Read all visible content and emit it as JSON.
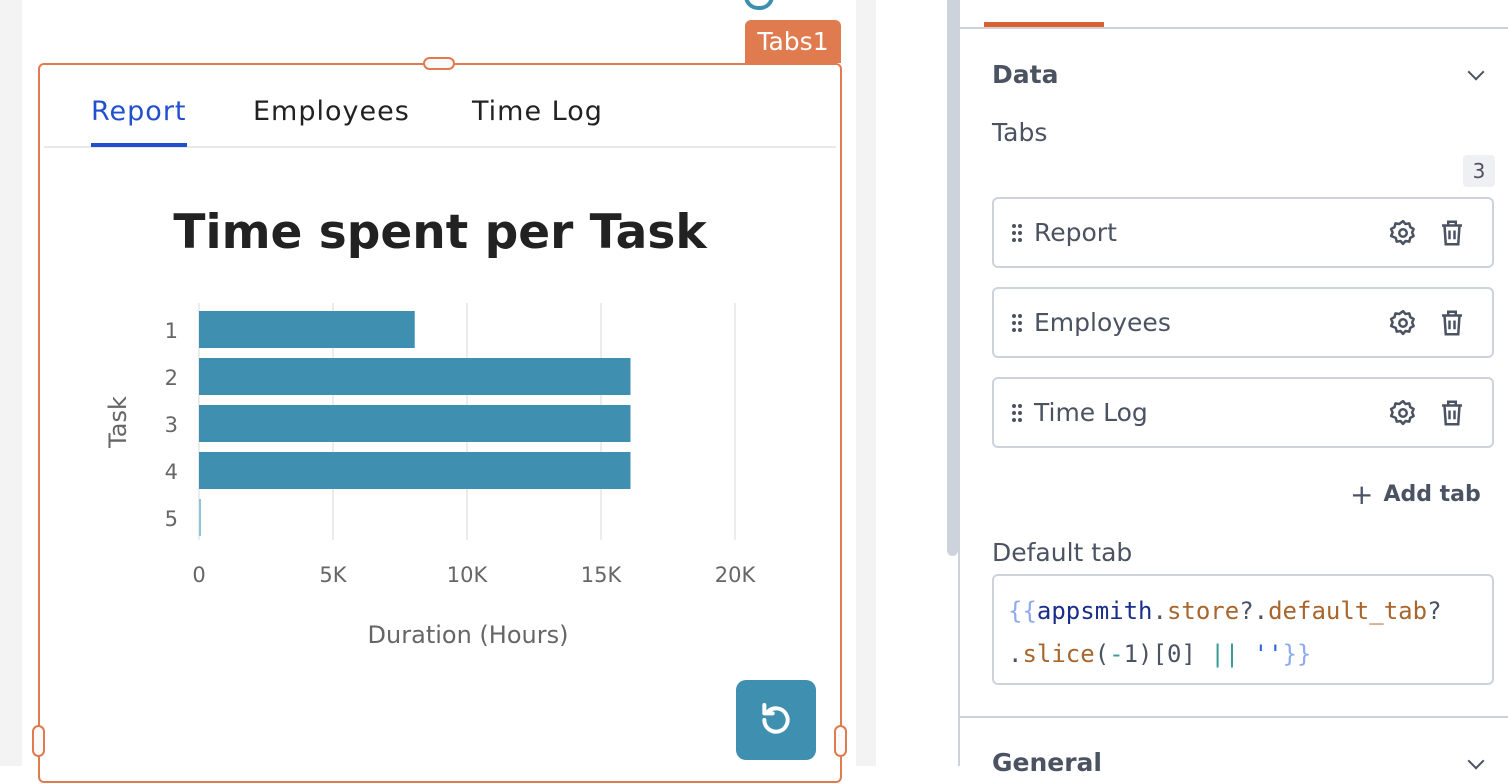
{
  "widget": {
    "label": "Tabs1",
    "tabs": [
      {
        "label": "Report",
        "active": true
      },
      {
        "label": "Employees"
      },
      {
        "label": "Time Log"
      }
    ]
  },
  "chart_data": {
    "type": "bar",
    "orientation": "horizontal",
    "title": "Time spent per Task",
    "xlabel": "Duration (Hours)",
    "ylabel": "Task",
    "categories": [
      "1",
      "2",
      "3",
      "4",
      "5"
    ],
    "values": [
      8050,
      16100,
      16100,
      16100,
      50
    ],
    "xlim": [
      0,
      23000
    ],
    "xticks": [
      0,
      5000,
      10000,
      15000,
      20000
    ],
    "xtick_labels": [
      "0",
      "5K",
      "10K",
      "15K",
      "20K"
    ],
    "grid": true,
    "color": "#3f8fb0"
  },
  "refresh_icon": "rotate-ccw-icon",
  "panel": {
    "section_data": "Data",
    "tabs_label": "Tabs",
    "tabs_count": "3",
    "tab_items": [
      {
        "label": "Report"
      },
      {
        "label": "Employees"
      },
      {
        "label": "Time Log"
      }
    ],
    "add_tab": "Add tab",
    "default_tab_label": "Default tab",
    "code_tokens": [
      {
        "t": "{{",
        "c": "#8eaaf0"
      },
      {
        "t": "appsmith",
        "c": "#1a2f8a"
      },
      {
        "t": ".",
        "c": "#4b5363"
      },
      {
        "t": "store",
        "c": "#a8662d"
      },
      {
        "t": "?.",
        "c": "#4b5363"
      },
      {
        "t": "default_tab",
        "c": "#a8662d"
      },
      {
        "t": "?",
        "c": "#4b5363"
      },
      {
        "t": ".",
        "c": "#4b5363",
        "br": true
      },
      {
        "t": "slice",
        "c": "#a8662d"
      },
      {
        "t": "(",
        "c": "#4b5363"
      },
      {
        "t": "-",
        "c": "#3a9a95"
      },
      {
        "t": "1)[0] ",
        "c": "#4b5363"
      },
      {
        "t": "||",
        "c": "#3a9a95"
      },
      {
        "t": " ",
        "c": "#4b5363"
      },
      {
        "t": "''",
        "c": "#2b63d6"
      },
      {
        "t": "}}",
        "c": "#8eaaf0"
      }
    ],
    "section_general": "General"
  },
  "colors": {
    "accent": "#e07a4f",
    "tab_active": "#2150cf",
    "panel_active": "#d9622f"
  }
}
